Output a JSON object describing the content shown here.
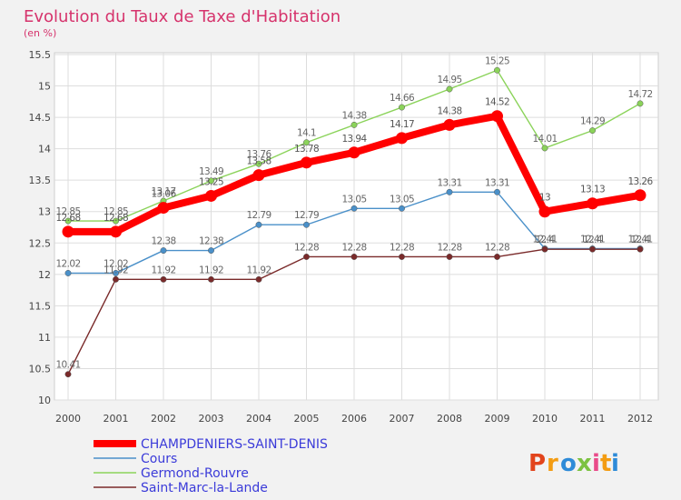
{
  "chart_data": {
    "type": "line",
    "title": "Evolution du Taux de Taxe d'Habitation",
    "subtitle": "(en %)",
    "x": [
      "2000",
      "2001",
      "2002",
      "2003",
      "2004",
      "2005",
      "2006",
      "2007",
      "2008",
      "2009",
      "2010",
      "2011",
      "2012"
    ],
    "ylim": [
      10,
      15.5
    ],
    "yticks": [
      "10",
      "10.5",
      "11",
      "11.5",
      "12",
      "12.5",
      "13",
      "13.5",
      "14",
      "14.5",
      "15",
      "15.5"
    ],
    "grid": true,
    "legend_position": "bottom-left",
    "series": [
      {
        "name": "CHAMPDENIERS-SAINT-DENIS",
        "color": "#ff0000",
        "values": [
          12.68,
          12.68,
          13.06,
          13.25,
          13.58,
          13.78,
          13.94,
          14.17,
          14.38,
          14.52,
          13,
          13.13,
          13.26
        ],
        "labels": [
          "12.68",
          "12.68",
          "13.06",
          "13.25",
          "13.58",
          "13.78",
          "13.94",
          "14.17",
          "14.38",
          "14.52",
          "13",
          "13.13",
          "13.26"
        ]
      },
      {
        "name": "Cours",
        "color": "#4a90c9",
        "values": [
          12.02,
          12.02,
          12.38,
          12.38,
          12.79,
          12.79,
          13.05,
          13.05,
          13.31,
          13.31,
          12.41,
          12.41,
          12.41
        ],
        "labels": [
          "12.02",
          "12.02",
          "12.38",
          "12.38",
          "12.79",
          "12.79",
          "13.05",
          "13.05",
          "13.31",
          "13.31",
          "12.41",
          "12.41",
          "12.41"
        ]
      },
      {
        "name": "Germond-Rouvre",
        "color": "#8bd35a",
        "values": [
          12.85,
          12.85,
          13.17,
          13.49,
          13.76,
          14.1,
          14.38,
          14.66,
          14.95,
          15.25,
          14.01,
          14.29,
          14.72
        ],
        "labels": [
          "12.85",
          "12.85",
          "13.17",
          "13.49",
          "13.76",
          "14.1",
          "14.38",
          "14.66",
          "14.95",
          "15.25",
          "14.01",
          "14.29",
          "14.72"
        ]
      },
      {
        "name": "Saint-Marc-la-Lande",
        "color": "#7a2a2a",
        "values": [
          10.41,
          11.92,
          11.92,
          11.92,
          11.92,
          12.28,
          12.28,
          12.28,
          12.28,
          12.28,
          12.4,
          12.4,
          12.4
        ],
        "labels": [
          "10.41",
          "11.92",
          "11.92",
          "11.92",
          "11.92",
          "12.28",
          "12.28",
          "12.28",
          "12.28",
          "12.28",
          "12.4",
          "12.4",
          "12.4"
        ]
      }
    ]
  },
  "logo": {
    "text": "Proxiti",
    "colors": [
      "#e2441c",
      "#f39c12",
      "#2e8bd8",
      "#7cc242",
      "#e94b8a",
      "#f39c12",
      "#2e8bd8"
    ]
  }
}
